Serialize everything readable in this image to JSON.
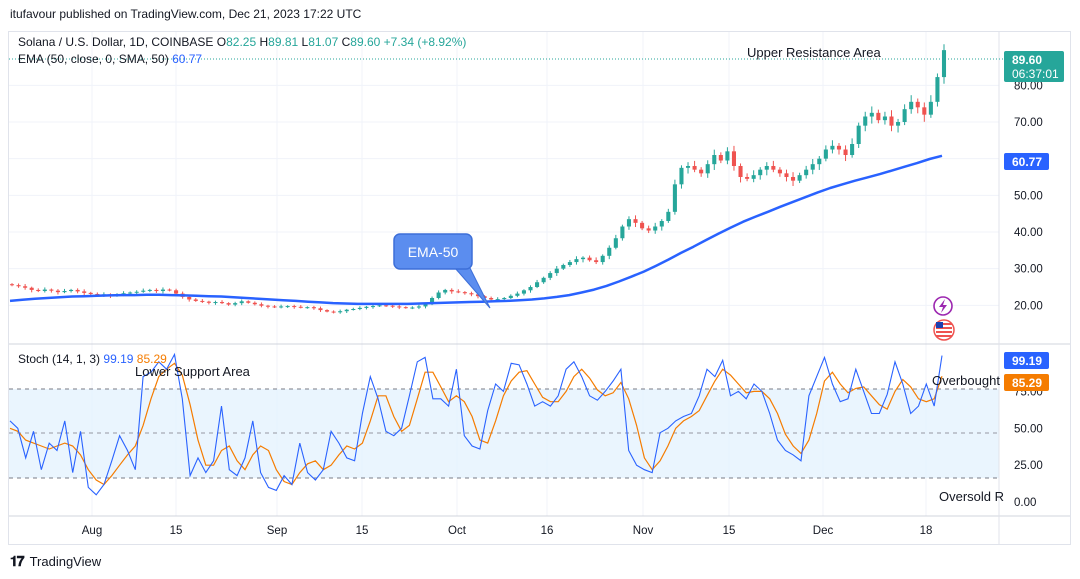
{
  "publisher": "itufavour published on TradingView.com, Dec 21, 2023 17:22 UTC",
  "footer": {
    "brand": "TradingView"
  },
  "legend_main": {
    "symbol": "Solana / U.S. Dollar, 1D, COINBASE",
    "o_label": "O",
    "o": "82.25",
    "h_label": "H",
    "h": "89.81",
    "l_label": "L",
    "l": "81.07",
    "c_label": "C",
    "c": "89.60",
    "change": "+7.34 (+8.92%)"
  },
  "legend_ema": {
    "label": "EMA (50, close, 0, SMA, 50)",
    "value": "60.77"
  },
  "legend_stoch": {
    "label": "Stoch (14, 1, 3)",
    "k": "99.19",
    "d": "85.29"
  },
  "annotations": {
    "upper": "Upper Resistance Area",
    "lower": "Lower Support Area",
    "ema_callout": "EMA-50",
    "overbought": "Overbought",
    "oversold": "Oversold R"
  },
  "price_badge": {
    "value": "89.60",
    "countdown": "06:37:01"
  },
  "ema_badge": "60.77",
  "stoch_badges": {
    "k": "99.19",
    "d": "85.29"
  },
  "colors": {
    "up": "#26a69a",
    "down": "#ef5350",
    "ema": "#2962ff",
    "stoch_k": "#2962ff",
    "stoch_d": "#f57c00",
    "band": "#e3f2fd",
    "callout": "#5b8def"
  },
  "chart_data": [
    {
      "type": "candlestick",
      "title": "Solana / U.S. Dollar, 1D, COINBASE",
      "x_ticks": [
        "Aug",
        "15",
        "Sep",
        "15",
        "Oct",
        "16",
        "Nov",
        "15",
        "Dec",
        "18"
      ],
      "y_ticks": [
        "20.00",
        "30.00",
        "40.00",
        "50.00",
        "60.00",
        "70.00",
        "80.00"
      ],
      "ylim": [
        10,
        94
      ],
      "close_series": [
        25.5,
        25.2,
        24.8,
        24.2,
        23.9,
        24.3,
        24.0,
        23.6,
        23.9,
        24.2,
        23.8,
        23.4,
        23.1,
        22.8,
        23.0,
        22.6,
        22.9,
        23.3,
        23.5,
        23.7,
        24.0,
        24.2,
        23.9,
        24.3,
        24.1,
        23.2,
        22.3,
        21.6,
        21.2,
        21.0,
        20.7,
        20.9,
        20.6,
        20.2,
        20.6,
        21.1,
        20.7,
        20.3,
        19.9,
        19.7,
        19.5,
        19.7,
        19.8,
        19.6,
        19.4,
        19.5,
        19.2,
        18.7,
        18.3,
        18.1,
        18.4,
        18.8,
        19.0,
        19.3,
        19.6,
        19.8,
        20.0,
        19.9,
        19.7,
        19.5,
        19.3,
        19.4,
        19.7,
        20.3,
        22.0,
        23.5,
        24.2,
        23.8,
        23.6,
        23.3,
        23.0,
        22.5,
        22.0,
        21.6,
        21.7,
        22.0,
        22.6,
        23.2,
        24.1,
        25.0,
        26.3,
        27.5,
        28.8,
        30.0,
        31.0,
        31.8,
        32.6,
        33.0,
        32.3,
        31.8,
        33.5,
        35.7,
        38.3,
        41.5,
        43.5,
        42.5,
        41.0,
        40.4,
        41.5,
        43.0,
        45.5,
        53.0,
        57.5,
        58.0,
        57.0,
        56.0,
        58.5,
        61.0,
        59.5,
        62.0,
        58.0,
        55.0,
        54.5,
        55.5,
        57.0,
        58.0,
        57.0,
        56.0,
        55.0,
        54.0,
        55.5,
        57.0,
        58.5,
        60.0,
        62.5,
        63.5,
        62.5,
        61.0,
        64.0,
        69.0,
        71.5,
        72.5,
        70.5,
        71.5,
        69.0,
        70.0,
        73.5,
        75.5,
        74.0,
        72.0,
        75.5,
        82.25,
        89.6
      ],
      "ema50_series": [
        21.2,
        21.5,
        21.8,
        22.0,
        22.2,
        22.4,
        22.5,
        22.6,
        22.7,
        22.8,
        22.8,
        22.9,
        22.9,
        22.8,
        22.7,
        22.6,
        22.5,
        22.4,
        22.2,
        22.0,
        21.8,
        21.6,
        21.4,
        21.2,
        21.0,
        20.8,
        20.6,
        20.5,
        20.4,
        20.4,
        20.4,
        20.4,
        20.4,
        20.5,
        20.6,
        20.7,
        20.8,
        20.9,
        21.0,
        21.1,
        21.2,
        21.4,
        21.6,
        21.9,
        22.3,
        22.8,
        23.5,
        24.3,
        25.3,
        26.5,
        27.8,
        29.2,
        30.8,
        32.5,
        34.3,
        36.0,
        37.8,
        39.5,
        41.2,
        42.8,
        44.2,
        45.5,
        46.9,
        48.2,
        49.5,
        50.8,
        52.0,
        53.0,
        54.0,
        54.9,
        55.8,
        56.8,
        57.8,
        58.8,
        59.9,
        60.77
      ],
      "series": [
        {
          "name": "EMA (50, close, 0, SMA, 50)",
          "last": 60.77
        }
      ]
    },
    {
      "type": "line",
      "title": "Stoch (14, 1, 3)",
      "y_ticks": [
        "0.00",
        "25.00",
        "50.00",
        "75.00"
      ],
      "ylim": [
        -8,
        103
      ],
      "levels": [
        80,
        50,
        20
      ],
      "series": [
        {
          "name": "%K",
          "last": 99.19,
          "values": [
            55,
            50,
            30,
            48,
            22,
            40,
            35,
            55,
            20,
            48,
            10,
            5,
            12,
            28,
            45,
            35,
            22,
            85,
            88,
            95,
            90,
            100,
            70,
            18,
            30,
            20,
            28,
            65,
            22,
            18,
            30,
            55,
            20,
            10,
            8,
            18,
            12,
            40,
            20,
            15,
            22,
            48,
            40,
            30,
            28,
            60,
            85,
            70,
            48,
            45,
            50,
            72,
            95,
            98,
            70,
            70,
            65,
            90,
            45,
            38,
            36,
            62,
            80,
            75,
            94,
            93,
            80,
            65,
            68,
            65,
            72,
            90,
            95,
            85,
            72,
            69,
            75,
            82,
            90,
            35,
            25,
            22,
            20,
            47,
            50,
            55,
            58,
            60,
            72,
            90,
            85,
            96,
            72,
            75,
            70,
            80,
            75,
            60,
            42,
            35,
            32,
            28,
            72,
            85,
            98,
            80,
            68,
            70,
            90,
            75,
            60,
            60,
            73,
            95,
            80,
            60,
            65,
            80,
            65,
            99.19
          ]
        },
        {
          "name": "%D",
          "last": 85.29,
          "values": [
            50,
            48,
            42,
            40,
            38,
            36,
            38,
            40,
            38,
            32,
            22,
            15,
            12,
            18,
            25,
            32,
            38,
            52,
            70,
            85,
            90,
            94,
            86,
            66,
            42,
            25,
            25,
            35,
            38,
            28,
            22,
            32,
            38,
            35,
            22,
            14,
            12,
            20,
            26,
            28,
            22,
            25,
            32,
            38,
            36,
            40,
            55,
            72,
            72,
            58,
            48,
            52,
            70,
            88,
            88,
            78,
            68,
            72,
            68,
            58,
            42,
            40,
            55,
            72,
            82,
            88,
            89,
            80,
            71,
            68,
            68,
            75,
            85,
            90,
            84,
            76,
            72,
            74,
            81,
            70,
            52,
            30,
            22,
            28,
            38,
            50,
            55,
            58,
            62,
            72,
            82,
            90,
            86,
            80,
            74,
            75,
            75,
            70,
            60,
            46,
            38,
            33,
            42,
            60,
            82,
            88,
            80,
            74,
            77,
            78,
            72,
            66,
            63,
            75,
            83,
            78,
            70,
            68,
            70,
            85.29
          ]
        }
      ]
    }
  ]
}
